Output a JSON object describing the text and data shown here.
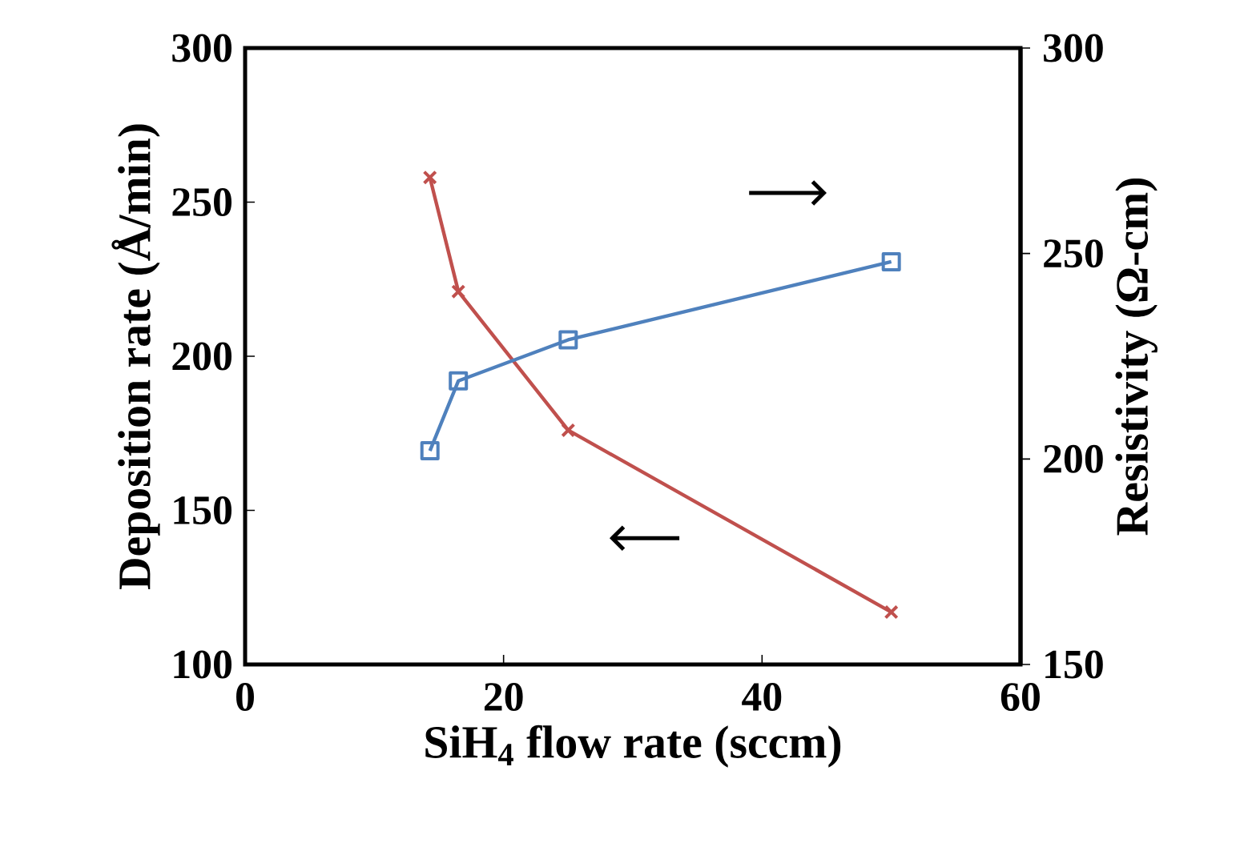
{
  "chart_data": {
    "type": "line",
    "xlabel": "SiH$_{4}$ flow rate (sccm)",
    "ylabel": "Deposition rate (Å/min)",
    "y2label": "Resistivity (Ω-cm)",
    "xlim": [
      0,
      60
    ],
    "xticks": [
      0,
      20,
      40,
      60
    ],
    "ylim": [
      100,
      300
    ],
    "yticks": [
      100,
      150,
      200,
      250,
      300
    ],
    "y2lim": [
      150,
      300
    ],
    "y2ticks": [
      150,
      200,
      250,
      300
    ],
    "grid": false,
    "line_style": "solid",
    "series": [
      {
        "color": "#c0504d",
        "marker": "cross",
        "x": [
          14.3,
          16.5,
          25,
          50
        ],
        "values": [
          258,
          221,
          176,
          117
        ]
      },
      {
        "color": "#4f81bd",
        "marker": "square",
        "axis": "y2",
        "x": [
          14.3,
          16.5,
          25,
          50
        ],
        "values": [
          202,
          219,
          229,
          248
        ]
      }
    ]
  }
}
